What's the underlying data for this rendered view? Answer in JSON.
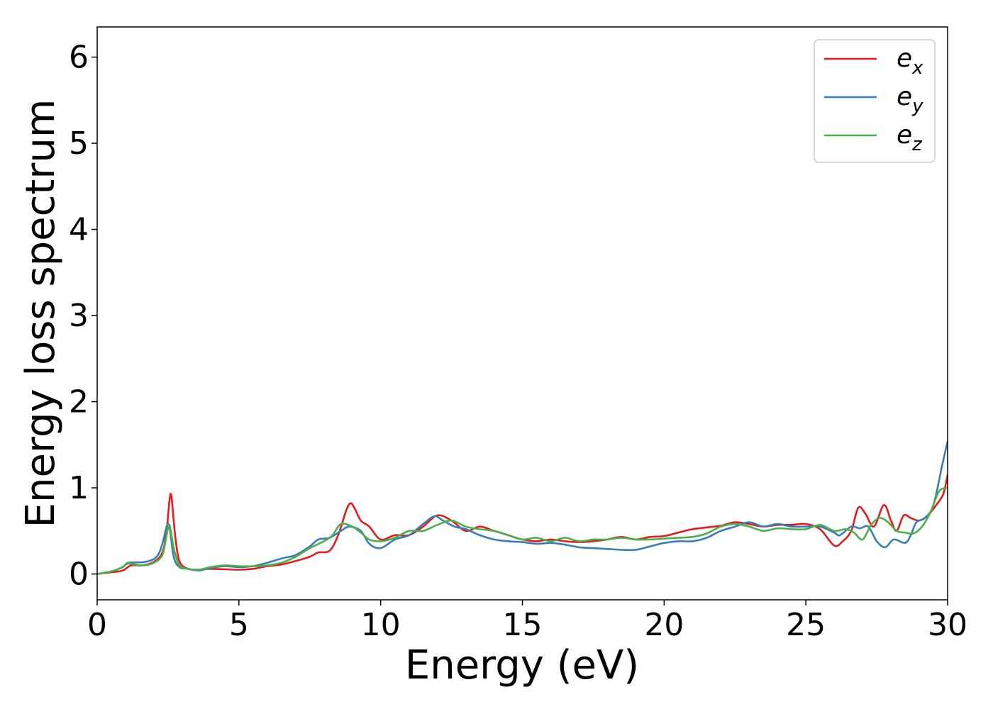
{
  "chart_data": {
    "type": "line",
    "title": "",
    "xlabel": "Energy (eV)",
    "ylabel": "Energy loss spectrum",
    "xlim": [
      0,
      30
    ],
    "ylim": [
      -0.3,
      6.35
    ],
    "xticks": [
      0,
      5,
      10,
      15,
      20,
      25,
      30
    ],
    "yticks": [
      0,
      1,
      2,
      3,
      4,
      5,
      6
    ],
    "grid": false,
    "legend_position": "top-right",
    "series": [
      {
        "name": "e",
        "subscript": "x",
        "color": "#e41a1c",
        "points": [
          [
            0,
            0
          ],
          [
            0.5,
            0.02
          ],
          [
            0.9,
            0.04
          ],
          [
            1.2,
            0.1
          ],
          [
            1.6,
            0.1
          ],
          [
            2.0,
            0.14
          ],
          [
            2.3,
            0.25
          ],
          [
            2.45,
            0.5
          ],
          [
            2.55,
            0.85
          ],
          [
            2.62,
            0.9
          ],
          [
            2.75,
            0.45
          ],
          [
            2.9,
            0.15
          ],
          [
            3.2,
            0.06
          ],
          [
            3.6,
            0.05
          ],
          [
            4.0,
            0.06
          ],
          [
            5.0,
            0.05
          ],
          [
            5.5,
            0.06
          ],
          [
            6.0,
            0.09
          ],
          [
            6.5,
            0.11
          ],
          [
            7.0,
            0.15
          ],
          [
            7.5,
            0.2
          ],
          [
            7.8,
            0.25
          ],
          [
            8.2,
            0.27
          ],
          [
            8.5,
            0.45
          ],
          [
            8.8,
            0.75
          ],
          [
            8.95,
            0.82
          ],
          [
            9.1,
            0.75
          ],
          [
            9.3,
            0.62
          ],
          [
            9.6,
            0.55
          ],
          [
            10.0,
            0.4
          ],
          [
            10.5,
            0.45
          ],
          [
            11.0,
            0.45
          ],
          [
            11.5,
            0.55
          ],
          [
            12.0,
            0.68
          ],
          [
            12.5,
            0.62
          ],
          [
            13.0,
            0.5
          ],
          [
            13.5,
            0.55
          ],
          [
            14.0,
            0.5
          ],
          [
            14.5,
            0.45
          ],
          [
            15.0,
            0.4
          ],
          [
            15.5,
            0.38
          ],
          [
            16.0,
            0.4
          ],
          [
            16.5,
            0.38
          ],
          [
            17.0,
            0.37
          ],
          [
            17.5,
            0.38
          ],
          [
            18.0,
            0.4
          ],
          [
            18.5,
            0.43
          ],
          [
            19.0,
            0.4
          ],
          [
            19.5,
            0.43
          ],
          [
            20.0,
            0.44
          ],
          [
            20.5,
            0.48
          ],
          [
            21.0,
            0.52
          ],
          [
            21.5,
            0.54
          ],
          [
            22.0,
            0.56
          ],
          [
            22.5,
            0.6
          ],
          [
            23.0,
            0.58
          ],
          [
            23.5,
            0.55
          ],
          [
            24.0,
            0.57
          ],
          [
            24.5,
            0.57
          ],
          [
            25.0,
            0.58
          ],
          [
            25.5,
            0.52
          ],
          [
            26.0,
            0.33
          ],
          [
            26.3,
            0.38
          ],
          [
            26.6,
            0.5
          ],
          [
            26.85,
            0.77
          ],
          [
            27.1,
            0.7
          ],
          [
            27.4,
            0.55
          ],
          [
            27.75,
            0.8
          ],
          [
            28.0,
            0.62
          ],
          [
            28.2,
            0.5
          ],
          [
            28.45,
            0.68
          ],
          [
            28.7,
            0.65
          ],
          [
            29.0,
            0.62
          ],
          [
            29.3,
            0.68
          ],
          [
            29.6,
            0.8
          ],
          [
            29.85,
            0.93
          ],
          [
            30,
            1.15
          ]
        ]
      },
      {
        "name": "e",
        "subscript": "y",
        "color": "#377eb8",
        "points": [
          [
            0,
            0
          ],
          [
            0.5,
            0.03
          ],
          [
            0.9,
            0.08
          ],
          [
            1.1,
            0.13
          ],
          [
            1.7,
            0.14
          ],
          [
            2.1,
            0.2
          ],
          [
            2.3,
            0.35
          ],
          [
            2.45,
            0.55
          ],
          [
            2.55,
            0.55
          ],
          [
            2.7,
            0.2
          ],
          [
            2.9,
            0.08
          ],
          [
            3.2,
            0.06
          ],
          [
            3.6,
            0.04
          ],
          [
            4.0,
            0.07
          ],
          [
            4.5,
            0.09
          ],
          [
            5.0,
            0.08
          ],
          [
            5.5,
            0.09
          ],
          [
            6.0,
            0.13
          ],
          [
            6.5,
            0.18
          ],
          [
            7.0,
            0.22
          ],
          [
            7.5,
            0.32
          ],
          [
            7.8,
            0.4
          ],
          [
            8.2,
            0.42
          ],
          [
            8.6,
            0.5
          ],
          [
            8.9,
            0.55
          ],
          [
            9.3,
            0.5
          ],
          [
            9.6,
            0.35
          ],
          [
            10.0,
            0.3
          ],
          [
            10.5,
            0.4
          ],
          [
            11.0,
            0.45
          ],
          [
            11.5,
            0.58
          ],
          [
            11.9,
            0.67
          ],
          [
            12.2,
            0.62
          ],
          [
            12.6,
            0.55
          ],
          [
            13.0,
            0.52
          ],
          [
            13.5,
            0.45
          ],
          [
            14.0,
            0.4
          ],
          [
            14.5,
            0.38
          ],
          [
            15.0,
            0.37
          ],
          [
            15.5,
            0.35
          ],
          [
            16.0,
            0.36
          ],
          [
            16.5,
            0.34
          ],
          [
            17.0,
            0.31
          ],
          [
            17.5,
            0.3
          ],
          [
            18.0,
            0.29
          ],
          [
            18.5,
            0.28
          ],
          [
            19.0,
            0.28
          ],
          [
            19.5,
            0.32
          ],
          [
            20.0,
            0.36
          ],
          [
            20.5,
            0.38
          ],
          [
            21.0,
            0.38
          ],
          [
            21.5,
            0.42
          ],
          [
            22.0,
            0.5
          ],
          [
            22.5,
            0.55
          ],
          [
            23.0,
            0.6
          ],
          [
            23.5,
            0.55
          ],
          [
            24.0,
            0.58
          ],
          [
            24.5,
            0.55
          ],
          [
            25.0,
            0.55
          ],
          [
            25.5,
            0.55
          ],
          [
            26.0,
            0.48
          ],
          [
            26.2,
            0.45
          ],
          [
            26.6,
            0.55
          ],
          [
            26.9,
            0.53
          ],
          [
            27.2,
            0.55
          ],
          [
            27.5,
            0.38
          ],
          [
            27.8,
            0.31
          ],
          [
            28.1,
            0.4
          ],
          [
            28.5,
            0.36
          ],
          [
            28.7,
            0.45
          ],
          [
            28.9,
            0.6
          ],
          [
            29.2,
            0.65
          ],
          [
            29.5,
            0.8
          ],
          [
            29.8,
            1.25
          ],
          [
            30,
            1.54
          ]
        ]
      },
      {
        "name": "e",
        "subscript": "z",
        "color": "#4daf4a",
        "points": [
          [
            0,
            0
          ],
          [
            0.5,
            0.03
          ],
          [
            0.9,
            0.08
          ],
          [
            1.1,
            0.12
          ],
          [
            1.6,
            0.1
          ],
          [
            2.0,
            0.13
          ],
          [
            2.3,
            0.22
          ],
          [
            2.45,
            0.45
          ],
          [
            2.55,
            0.57
          ],
          [
            2.7,
            0.3
          ],
          [
            2.9,
            0.1
          ],
          [
            3.2,
            0.06
          ],
          [
            3.6,
            0.05
          ],
          [
            4.0,
            0.08
          ],
          [
            4.5,
            0.1
          ],
          [
            5.0,
            0.09
          ],
          [
            5.5,
            0.09
          ],
          [
            6.0,
            0.1
          ],
          [
            6.5,
            0.13
          ],
          [
            7.0,
            0.2
          ],
          [
            7.5,
            0.3
          ],
          [
            8.0,
            0.38
          ],
          [
            8.3,
            0.45
          ],
          [
            8.6,
            0.58
          ],
          [
            9.0,
            0.55
          ],
          [
            9.3,
            0.48
          ],
          [
            9.6,
            0.4
          ],
          [
            10.0,
            0.38
          ],
          [
            10.5,
            0.42
          ],
          [
            11.0,
            0.5
          ],
          [
            11.5,
            0.5
          ],
          [
            12.0,
            0.57
          ],
          [
            12.5,
            0.62
          ],
          [
            13.0,
            0.55
          ],
          [
            13.5,
            0.52
          ],
          [
            14.0,
            0.5
          ],
          [
            14.5,
            0.45
          ],
          [
            15.0,
            0.4
          ],
          [
            15.5,
            0.42
          ],
          [
            16.0,
            0.38
          ],
          [
            16.5,
            0.42
          ],
          [
            17.0,
            0.38
          ],
          [
            17.5,
            0.4
          ],
          [
            18.0,
            0.4
          ],
          [
            18.5,
            0.42
          ],
          [
            19.0,
            0.4
          ],
          [
            19.5,
            0.4
          ],
          [
            20.0,
            0.41
          ],
          [
            20.5,
            0.42
          ],
          [
            21.0,
            0.43
          ],
          [
            21.5,
            0.47
          ],
          [
            22.0,
            0.55
          ],
          [
            22.5,
            0.58
          ],
          [
            23.0,
            0.55
          ],
          [
            23.5,
            0.5
          ],
          [
            24.0,
            0.53
          ],
          [
            24.5,
            0.52
          ],
          [
            25.0,
            0.52
          ],
          [
            25.5,
            0.57
          ],
          [
            26.0,
            0.5
          ],
          [
            26.4,
            0.52
          ],
          [
            26.7,
            0.48
          ],
          [
            27.0,
            0.4
          ],
          [
            27.3,
            0.57
          ],
          [
            27.6,
            0.65
          ],
          [
            27.9,
            0.6
          ],
          [
            28.2,
            0.5
          ],
          [
            28.5,
            0.48
          ],
          [
            28.8,
            0.47
          ],
          [
            29.1,
            0.55
          ],
          [
            29.4,
            0.72
          ],
          [
            29.7,
            0.96
          ],
          [
            30,
            1.0
          ]
        ]
      }
    ]
  }
}
